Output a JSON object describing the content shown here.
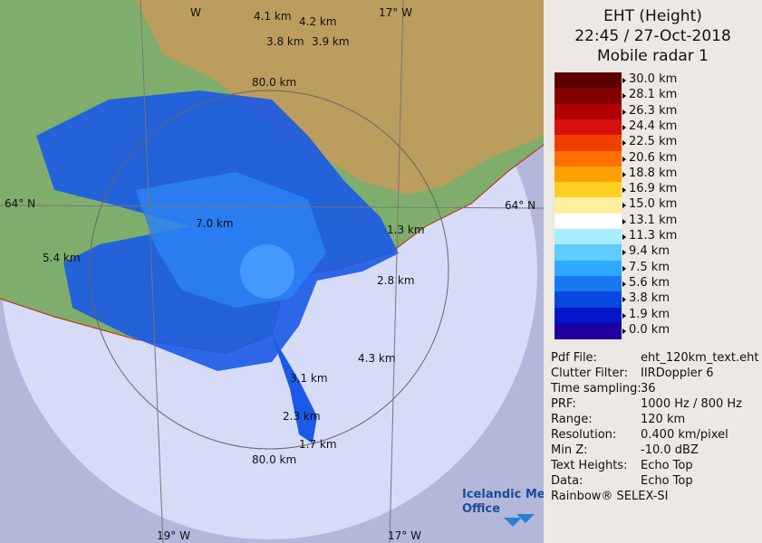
{
  "header": {
    "title": "EHT (Height)",
    "datetime": "22:45 / 27-Oct-2018",
    "radar": "Mobile radar 1"
  },
  "legend": {
    "items": [
      {
        "label": "30.0 km",
        "color": "#5c0000"
      },
      {
        "label": "28.1 km",
        "color": "#840000"
      },
      {
        "label": "26.3 km",
        "color": "#b00000"
      },
      {
        "label": "24.4 km",
        "color": "#d81010"
      },
      {
        "label": "22.5 km",
        "color": "#f04000"
      },
      {
        "label": "20.6 km",
        "color": "#ff7000"
      },
      {
        "label": "18.8 km",
        "color": "#ffa000"
      },
      {
        "label": "16.9 km",
        "color": "#ffd020"
      },
      {
        "label": "15.0 km",
        "color": "#fff0a0"
      },
      {
        "label": "13.1 km",
        "color": "#ffffff"
      },
      {
        "label": "11.3 km",
        "color": "#a8ecff"
      },
      {
        "label": "9.4 km",
        "color": "#60ccff"
      },
      {
        "label": "7.5 km",
        "color": "#30a8ff"
      },
      {
        "label": "5.6 km",
        "color": "#1878f0"
      },
      {
        "label": "3.8 km",
        "color": "#0848e0"
      },
      {
        "label": "1.9 km",
        "color": "#0018c8"
      },
      {
        "label": "0.0 km",
        "color": "#2000a0"
      }
    ]
  },
  "info": {
    "rows": [
      [
        "Pdf File:",
        "eht_120km_text.eht"
      ],
      [
        "Clutter Filter:",
        "IIRDoppler 6"
      ],
      [
        "Time sampling:",
        "36"
      ],
      [
        "PRF:",
        "1000 Hz / 800 Hz"
      ],
      [
        "Range:",
        "120 km"
      ],
      [
        "Resolution:",
        "0.400 km/pixel"
      ],
      [
        "Min Z:",
        "-10.0 dBZ"
      ],
      [
        "Text Heights:",
        "Echo Top"
      ],
      [
        "Data:",
        "Echo Top"
      ]
    ],
    "footer": "Rainbow® SELEX-SI"
  },
  "map": {
    "grid_labels": [
      "64° N",
      "64° N",
      "19° W",
      "17° W",
      "W",
      "17° W"
    ],
    "range_labels": [
      "80.0 km",
      "80.0 km"
    ],
    "echo_labels": [
      "4.1 km",
      "4.2 km",
      "3.8 km",
      "3.9 km",
      "7.0 km",
      "1.3 km",
      "5.4 km",
      "2.8 km",
      "4.3 km",
      "3.1 km",
      "2.3 km",
      "1.7 km"
    ],
    "logo": [
      "Icelandic Met",
      "Office"
    ]
  }
}
